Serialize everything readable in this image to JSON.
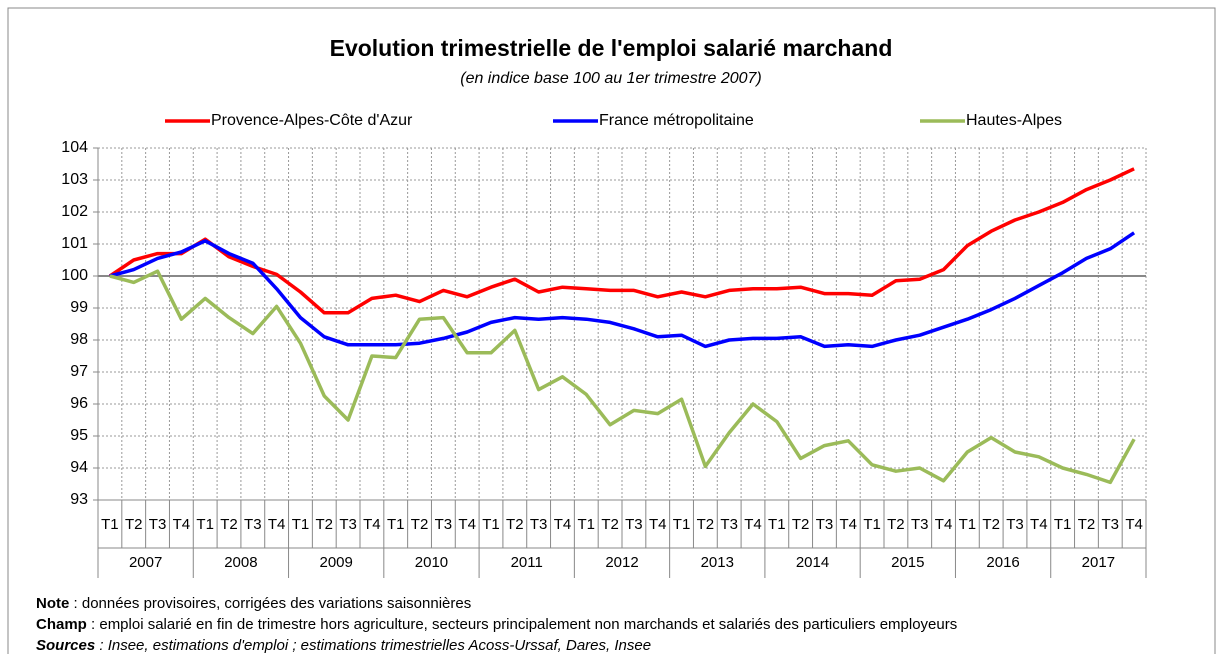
{
  "chart_data": {
    "type": "line",
    "title": "Evolution trimestrielle de l'emploi salarié marchand",
    "subtitle": "(en indice base 100 au 1er trimestre 2007)",
    "categories": [
      "T1",
      "T2",
      "T3",
      "T4",
      "T1",
      "T2",
      "T3",
      "T4",
      "T1",
      "T2",
      "T3",
      "T4",
      "T1",
      "T2",
      "T3",
      "T4",
      "T1",
      "T2",
      "T3",
      "T4",
      "T1",
      "T2",
      "T3",
      "T4",
      "T1",
      "T2",
      "T3",
      "T4",
      "T1",
      "T2",
      "T3",
      "T4",
      "T1",
      "T2",
      "T3",
      "T4",
      "T1",
      "T2",
      "T3",
      "T4",
      "T1",
      "T2",
      "T3",
      "T4"
    ],
    "years": [
      "2007",
      "2008",
      "2009",
      "2010",
      "2011",
      "2012",
      "2013",
      "2014",
      "2015",
      "2016",
      "2017"
    ],
    "ylim": [
      93,
      104
    ],
    "yticks": [
      93,
      94,
      95,
      96,
      97,
      98,
      99,
      100,
      101,
      102,
      103,
      104
    ],
    "reference_line": 100,
    "grid": true,
    "legend": "top",
    "series": [
      {
        "name": "Provence-Alpes-Côte d'Azur",
        "color": "#ff0000",
        "values": [
          100,
          100.5,
          100.7,
          100.7,
          101.15,
          100.6,
          100.3,
          100.05,
          99.5,
          98.85,
          98.85,
          99.3,
          99.4,
          99.2,
          99.55,
          99.35,
          99.65,
          99.9,
          99.5,
          99.65,
          99.6,
          99.55,
          99.55,
          99.35,
          99.5,
          99.35,
          99.55,
          99.6,
          99.6,
          99.65,
          99.45,
          99.45,
          99.4,
          99.85,
          99.9,
          100.2,
          100.95,
          101.4,
          101.75,
          102.0,
          102.3,
          102.7,
          103.0,
          103.35
        ]
      },
      {
        "name": "France métropolitaine",
        "color": "#0000ff",
        "values": [
          100,
          100.2,
          100.55,
          100.75,
          101.1,
          100.7,
          100.4,
          99.6,
          98.7,
          98.1,
          97.85,
          97.85,
          97.85,
          97.9,
          98.05,
          98.25,
          98.55,
          98.7,
          98.65,
          98.7,
          98.65,
          98.55,
          98.35,
          98.1,
          98.15,
          97.8,
          98.0,
          98.05,
          98.05,
          98.1,
          97.8,
          97.85,
          97.8,
          98.0,
          98.15,
          98.4,
          98.65,
          98.95,
          99.3,
          99.7,
          100.1,
          100.55,
          100.85,
          101.35
        ]
      },
      {
        "name": "Hautes-Alpes",
        "color": "#9bbb59",
        "values": [
          100,
          99.8,
          100.15,
          98.65,
          99.3,
          98.7,
          98.2,
          99.05,
          97.9,
          96.25,
          95.5,
          97.5,
          97.45,
          98.65,
          98.7,
          97.6,
          97.6,
          98.3,
          96.45,
          96.85,
          96.3,
          95.35,
          95.8,
          95.7,
          96.15,
          94.05,
          95.1,
          96.0,
          95.45,
          94.3,
          94.7,
          94.85,
          94.1,
          93.9,
          94.0,
          93.6,
          94.5,
          94.95,
          94.5,
          94.35,
          94.0,
          93.8,
          93.55,
          94.9
        ]
      }
    ],
    "notes": [
      {
        "label": "Note",
        "text": " : données provisoires, corrigées des variations saisonnières"
      },
      {
        "label": "Champ",
        "text": " : emploi salarié en fin de trimestre hors agriculture, secteurs principalement non marchands et salariés des particuliers employeurs"
      },
      {
        "label": "Sources",
        "text": " : Insee, estimations d'emploi ; estimations trimestrielles Acoss-Urssaf, Dares, Insee"
      }
    ]
  }
}
